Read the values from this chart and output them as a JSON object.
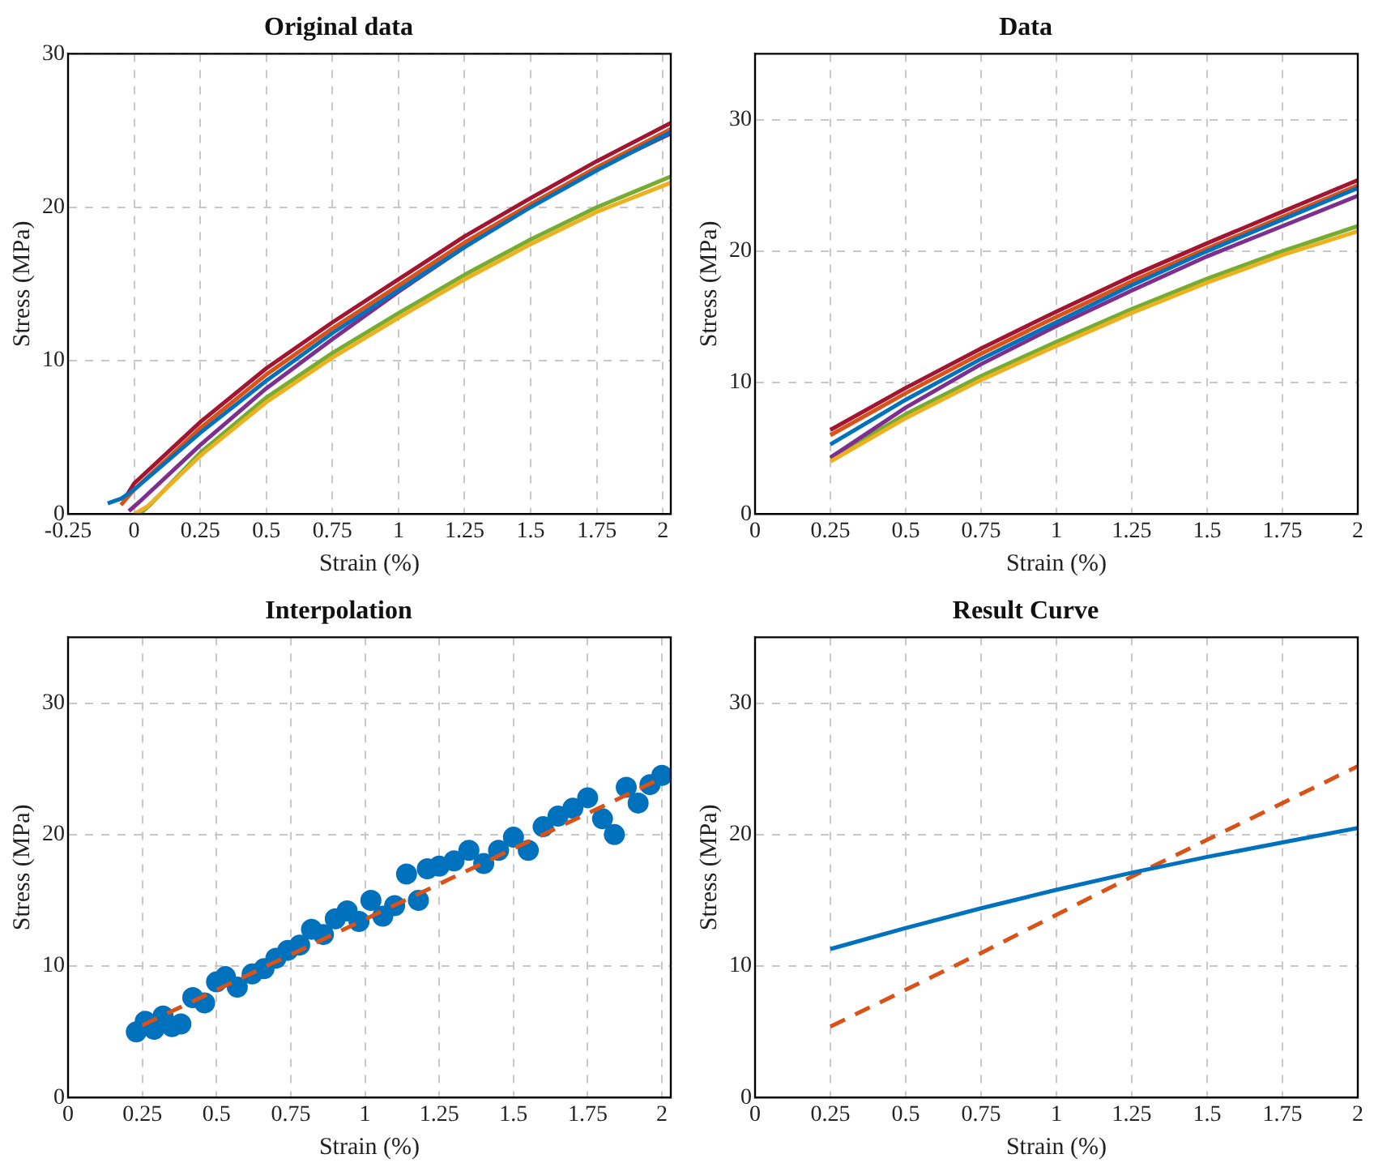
{
  "chart_data": [
    {
      "type": "line",
      "title": "Original data",
      "xlabel": "Strain (%)",
      "ylabel": "Stress (MPa)",
      "xlim": [
        -0.25,
        2.03
      ],
      "ylim": [
        0,
        30
      ],
      "xticks": [
        -0.25,
        0,
        0.25,
        0.5,
        0.75,
        1,
        1.25,
        1.5,
        1.75,
        2
      ],
      "yticks": [
        0,
        10,
        20,
        30
      ],
      "grid": true,
      "legend": false,
      "marker": "none",
      "line_style": "solid",
      "series": [
        {
          "color": "#0072bd",
          "x": [
            -0.1,
            -0.05,
            0,
            0.25,
            0.5,
            0.75,
            1,
            1.25,
            1.5,
            1.75,
            2.03
          ],
          "values": [
            0.7,
            1,
            1.6,
            5.3,
            8.7,
            11.8,
            14.6,
            17.4,
            20,
            22.4,
            24.9
          ]
        },
        {
          "color": "#d95319",
          "x": [
            -0.05,
            0,
            0.25,
            0.5,
            0.75,
            1,
            1.25,
            1.5,
            1.75,
            2.03
          ],
          "values": [
            0.6,
            1.6,
            5.6,
            9.1,
            12.1,
            14.9,
            17.7,
            20.2,
            22.6,
            25.1
          ]
        },
        {
          "color": "#edb120",
          "x": [
            0,
            0.05,
            0.25,
            0.5,
            0.75,
            1,
            1.25,
            1.5,
            1.75,
            2.03
          ],
          "values": [
            0,
            0.5,
            3.8,
            7.3,
            10.2,
            12.8,
            15.3,
            17.6,
            19.7,
            21.6
          ]
        },
        {
          "color": "#7e2f8e",
          "x": [
            -0.02,
            0.02,
            0.25,
            0.5,
            0.75,
            1,
            1.25,
            1.5,
            1.75,
            2.03
          ],
          "values": [
            0.2,
            0.8,
            4.5,
            8.2,
            11.4,
            14.5,
            17.4,
            20.1,
            22.5,
            24.8
          ]
        },
        {
          "color": "#77ac30",
          "x": [
            0.02,
            0.06,
            0.25,
            0.5,
            0.75,
            1,
            1.25,
            1.5,
            1.75,
            2.03
          ],
          "values": [
            0,
            0.6,
            4,
            7.6,
            10.5,
            13.1,
            15.6,
            17.9,
            20,
            22
          ]
        },
        {
          "color": "#a2142f",
          "x": [
            -0.04,
            0,
            0.25,
            0.5,
            0.75,
            1,
            1.25,
            1.5,
            1.75,
            2.03
          ],
          "values": [
            0.9,
            2,
            6,
            9.5,
            12.5,
            15.3,
            18.1,
            20.6,
            23,
            25.5
          ]
        }
      ]
    },
    {
      "type": "line",
      "title": "Data",
      "xlabel": "Strain (%)",
      "ylabel": "Stress (MPa)",
      "xlim": [
        0,
        2
      ],
      "ylim": [
        0,
        35
      ],
      "xticks": [
        0,
        0.25,
        0.5,
        0.75,
        1,
        1.25,
        1.5,
        1.75,
        2
      ],
      "yticks": [
        0,
        10,
        20,
        30
      ],
      "grid": true,
      "legend": false,
      "marker": "none",
      "line_style": "solid",
      "series": [
        {
          "color": "#0072bd",
          "x": [
            0.25,
            0.5,
            0.75,
            1,
            1.25,
            1.5,
            1.75,
            2
          ],
          "values": [
            5.3,
            8.7,
            11.8,
            14.6,
            17.4,
            20,
            22.4,
            24.8
          ]
        },
        {
          "color": "#d95319",
          "x": [
            0.25,
            0.5,
            0.75,
            1,
            1.25,
            1.5,
            1.75,
            2
          ],
          "values": [
            6,
            9.2,
            12.2,
            15,
            17.7,
            20.2,
            22.6,
            25
          ]
        },
        {
          "color": "#edb120",
          "x": [
            0.25,
            0.5,
            0.75,
            1,
            1.25,
            1.5,
            1.75,
            2
          ],
          "values": [
            4,
            7.3,
            10.2,
            12.8,
            15.3,
            17.6,
            19.7,
            21.5
          ]
        },
        {
          "color": "#7e2f8e",
          "x": [
            0.25,
            0.5,
            0.75,
            1,
            1.25,
            1.5,
            1.75,
            2
          ],
          "values": [
            4.3,
            8.1,
            11.4,
            14.3,
            17,
            19.6,
            21.9,
            24.2
          ]
        },
        {
          "color": "#77ac30",
          "x": [
            0.25,
            0.5,
            0.75,
            1,
            1.25,
            1.5,
            1.75,
            2
          ],
          "values": [
            4.2,
            7.6,
            10.5,
            13.1,
            15.6,
            17.9,
            20,
            21.9
          ]
        },
        {
          "color": "#a2142f",
          "x": [
            0.25,
            0.5,
            0.75,
            1,
            1.25,
            1.5,
            1.75,
            2
          ],
          "values": [
            6.4,
            9.6,
            12.6,
            15.4,
            18.1,
            20.6,
            23,
            25.4
          ]
        }
      ]
    },
    {
      "type": "scatter",
      "title": "Interpolation",
      "xlabel": "Strain (%)",
      "ylabel": "Stress (MPa)",
      "xlim": [
        0,
        2.03
      ],
      "ylim": [
        0,
        35
      ],
      "xticks": [
        0,
        0.25,
        0.5,
        0.75,
        1,
        1.25,
        1.5,
        1.75,
        2
      ],
      "yticks": [
        0,
        10,
        20,
        30
      ],
      "grid": true,
      "legend": false,
      "marker": "circle",
      "series": [
        {
          "color": "#0072bd",
          "x": [
            0.23,
            0.26,
            0.29,
            0.32,
            0.35,
            0.38,
            0.42,
            0.46,
            0.5,
            0.53,
            0.57,
            0.62,
            0.66,
            0.7,
            0.74,
            0.78,
            0.82,
            0.86,
            0.9,
            0.94,
            0.98,
            1.02,
            1.06,
            1.1,
            1.14,
            1.18,
            1.21,
            1.25,
            1.3,
            1.35,
            1.4,
            1.45,
            1.5,
            1.55,
            1.6,
            1.65,
            1.7,
            1.75,
            1.8,
            1.84,
            1.88,
            1.92,
            1.96,
            2.0
          ],
          "values": [
            5,
            5.8,
            5.2,
            6.2,
            5.4,
            5.6,
            7.6,
            7.2,
            8.8,
            9.2,
            8.4,
            9.4,
            9.8,
            10.6,
            11.2,
            11.6,
            12.8,
            12.4,
            13.6,
            14.2,
            13.4,
            15,
            13.8,
            14.6,
            17,
            15,
            17.4,
            17.6,
            18,
            18.8,
            17.8,
            18.8,
            19.8,
            18.8,
            20.6,
            21.4,
            22,
            22.8,
            21.2,
            20,
            23.6,
            22.4,
            23.8,
            24.5
          ]
        },
        {
          "type": "line",
          "marker": "none",
          "line_style": "dashed",
          "color": "#d95319",
          "x": [
            0.25,
            2
          ],
          "values": [
            5.5,
            24.3
          ]
        }
      ]
    },
    {
      "type": "line",
      "title": "Result Curve",
      "xlabel": "Strain (%)",
      "ylabel": "Stress (MPa)",
      "xlim": [
        0,
        2
      ],
      "ylim": [
        0,
        35
      ],
      "xticks": [
        0,
        0.25,
        0.5,
        0.75,
        1,
        1.25,
        1.5,
        1.75,
        2
      ],
      "yticks": [
        0,
        10,
        20,
        30
      ],
      "grid": true,
      "legend": false,
      "marker": "none",
      "series": [
        {
          "line_style": "solid",
          "color": "#0072bd",
          "x": [
            0.25,
            0.5,
            0.75,
            1,
            1.25,
            1.5,
            1.75,
            2
          ],
          "values": [
            11.3,
            12.9,
            14.4,
            15.8,
            17.1,
            18.3,
            19.4,
            20.5
          ]
        },
        {
          "line_style": "dashed",
          "color": "#d95319",
          "x": [
            0.25,
            0.5,
            0.75,
            1,
            1.25,
            1.5,
            1.75,
            2
          ],
          "values": [
            5.4,
            8.2,
            11,
            13.9,
            16.8,
            19.6,
            22.4,
            25.2
          ]
        }
      ]
    }
  ]
}
